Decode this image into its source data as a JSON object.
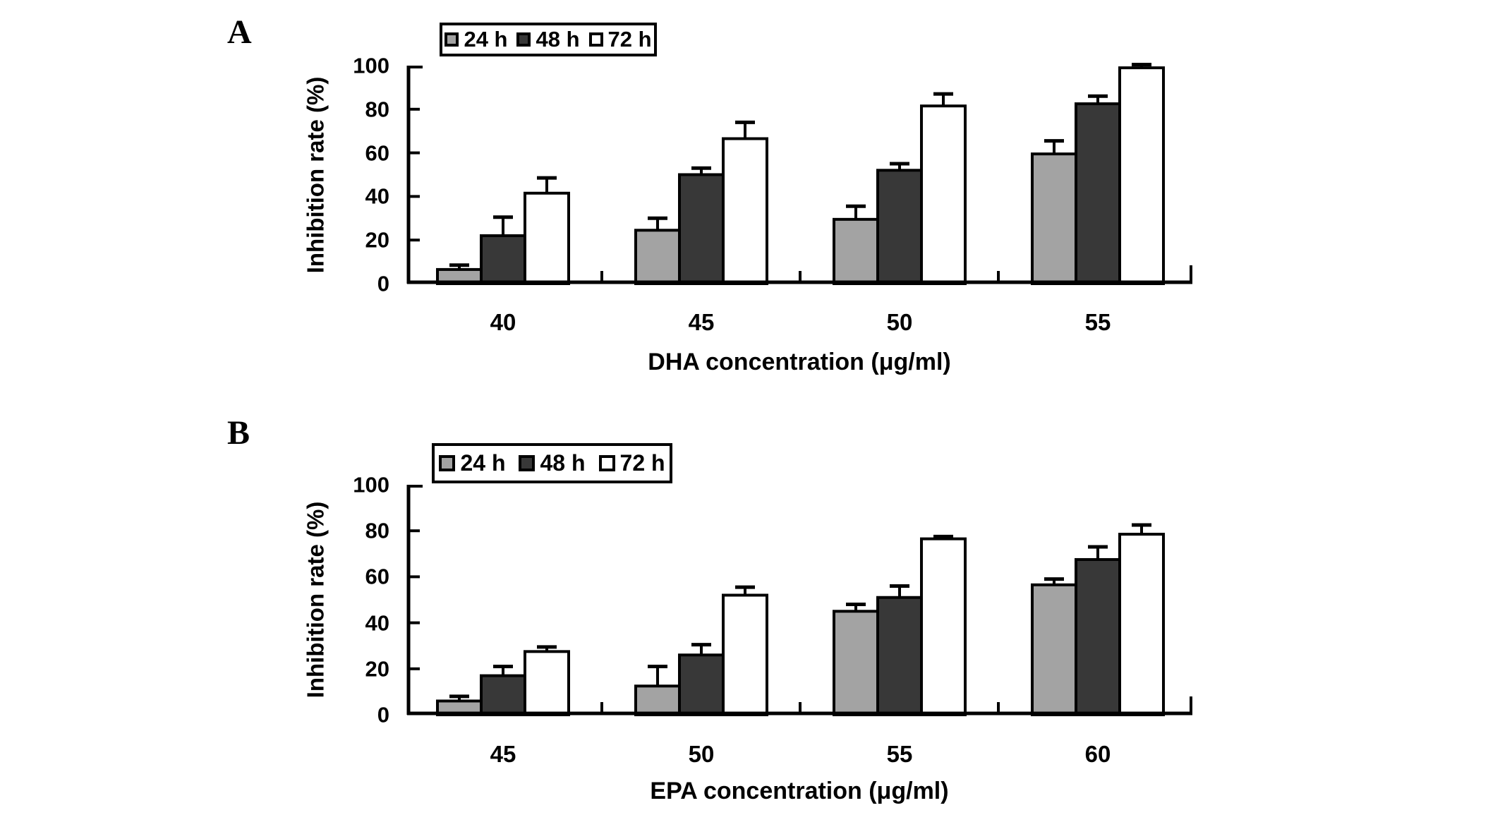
{
  "figure": {
    "description": "Two-panel grouped bar chart figure with error bars",
    "background_color": "#ffffff",
    "bar_outline_color": "#000000"
  },
  "chart_data": [
    {
      "type": "bar",
      "panel": "A",
      "categories": [
        "40",
        "45",
        "50",
        "55"
      ],
      "series": [
        {
          "name": "24 h",
          "color": "#a3a3a3",
          "values": [
            6.5,
            24.5,
            29.5,
            59.5
          ],
          "errors_plus": [
            2,
            5.5,
            6,
            6
          ]
        },
        {
          "name": "48 h",
          "color": "#383838",
          "values": [
            22,
            50,
            52,
            82.5
          ],
          "errors_plus": [
            8.5,
            3,
            3,
            3.5
          ]
        },
        {
          "name": "72 h",
          "color": "#ffffff",
          "values": [
            41.5,
            66.5,
            81.5,
            99
          ],
          "errors_plus": [
            7,
            7.5,
            5.5,
            1.5
          ]
        }
      ],
      "xlabel": "DHA concentration (μg/ml)",
      "ylabel": "Inhibition rate (%)",
      "ylim": [
        0,
        100
      ],
      "yticks": [
        0,
        20,
        40,
        60,
        80,
        100
      ],
      "legend_entries": [
        "24 h",
        "48 h",
        "72 h"
      ],
      "legend_position": "top-inside",
      "grid": false,
      "error_bars": "upper only"
    },
    {
      "type": "bar",
      "panel": "B",
      "categories": [
        "45",
        "50",
        "55",
        "60"
      ],
      "series": [
        {
          "name": "24 h",
          "color": "#a3a3a3",
          "values": [
            6,
            12.5,
            45,
            56.5
          ],
          "errors_plus": [
            2,
            8.5,
            3,
            2.5
          ]
        },
        {
          "name": "48 h",
          "color": "#383838",
          "values": [
            17,
            26,
            51,
            67.5
          ],
          "errors_plus": [
            4,
            4.5,
            5,
            5.5
          ]
        },
        {
          "name": "72 h",
          "color": "#ffffff",
          "values": [
            27.5,
            52,
            76.5,
            78.5
          ],
          "errors_plus": [
            2,
            3.5,
            1,
            4
          ]
        }
      ],
      "xlabel": "EPA concentration (μg/ml)",
      "ylabel": "Inhibition rate (%)",
      "ylim": [
        0,
        100
      ],
      "yticks": [
        0,
        20,
        40,
        60,
        80,
        100
      ],
      "legend_entries": [
        "24 h",
        "48 h",
        "72 h"
      ],
      "legend_position": "top-inside",
      "grid": false,
      "error_bars": "upper only"
    }
  ]
}
